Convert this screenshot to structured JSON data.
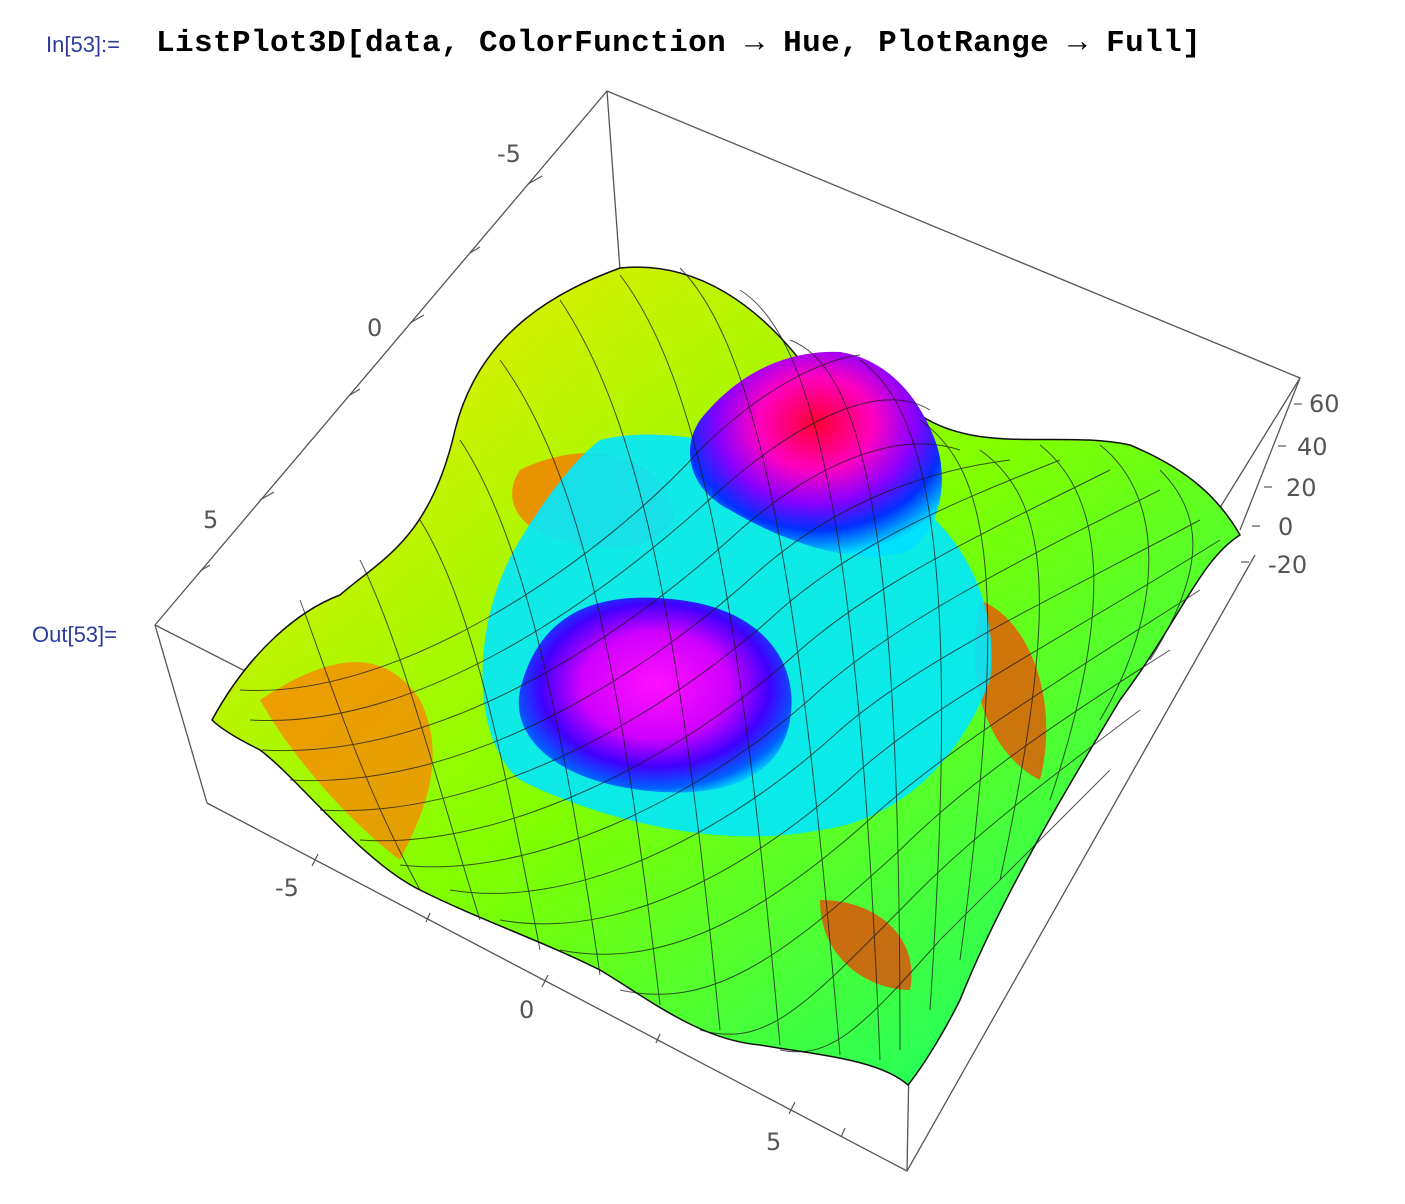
{
  "notebook": {
    "input_label": "In[53]:=",
    "input_code": "ListPlot3D[data, ColorFunction → Hue, PlotRange → Full]",
    "output_label": "Out[53]="
  },
  "chart_data": {
    "type": "surface3d",
    "color_function": "Hue",
    "x_ticks": [
      "-5",
      "0",
      "5"
    ],
    "y_ticks": [
      "-5",
      "0",
      "5"
    ],
    "z_ticks": [
      "60",
      "40",
      "20",
      "0",
      "-20"
    ],
    "z_range": [
      -25,
      70
    ]
  }
}
